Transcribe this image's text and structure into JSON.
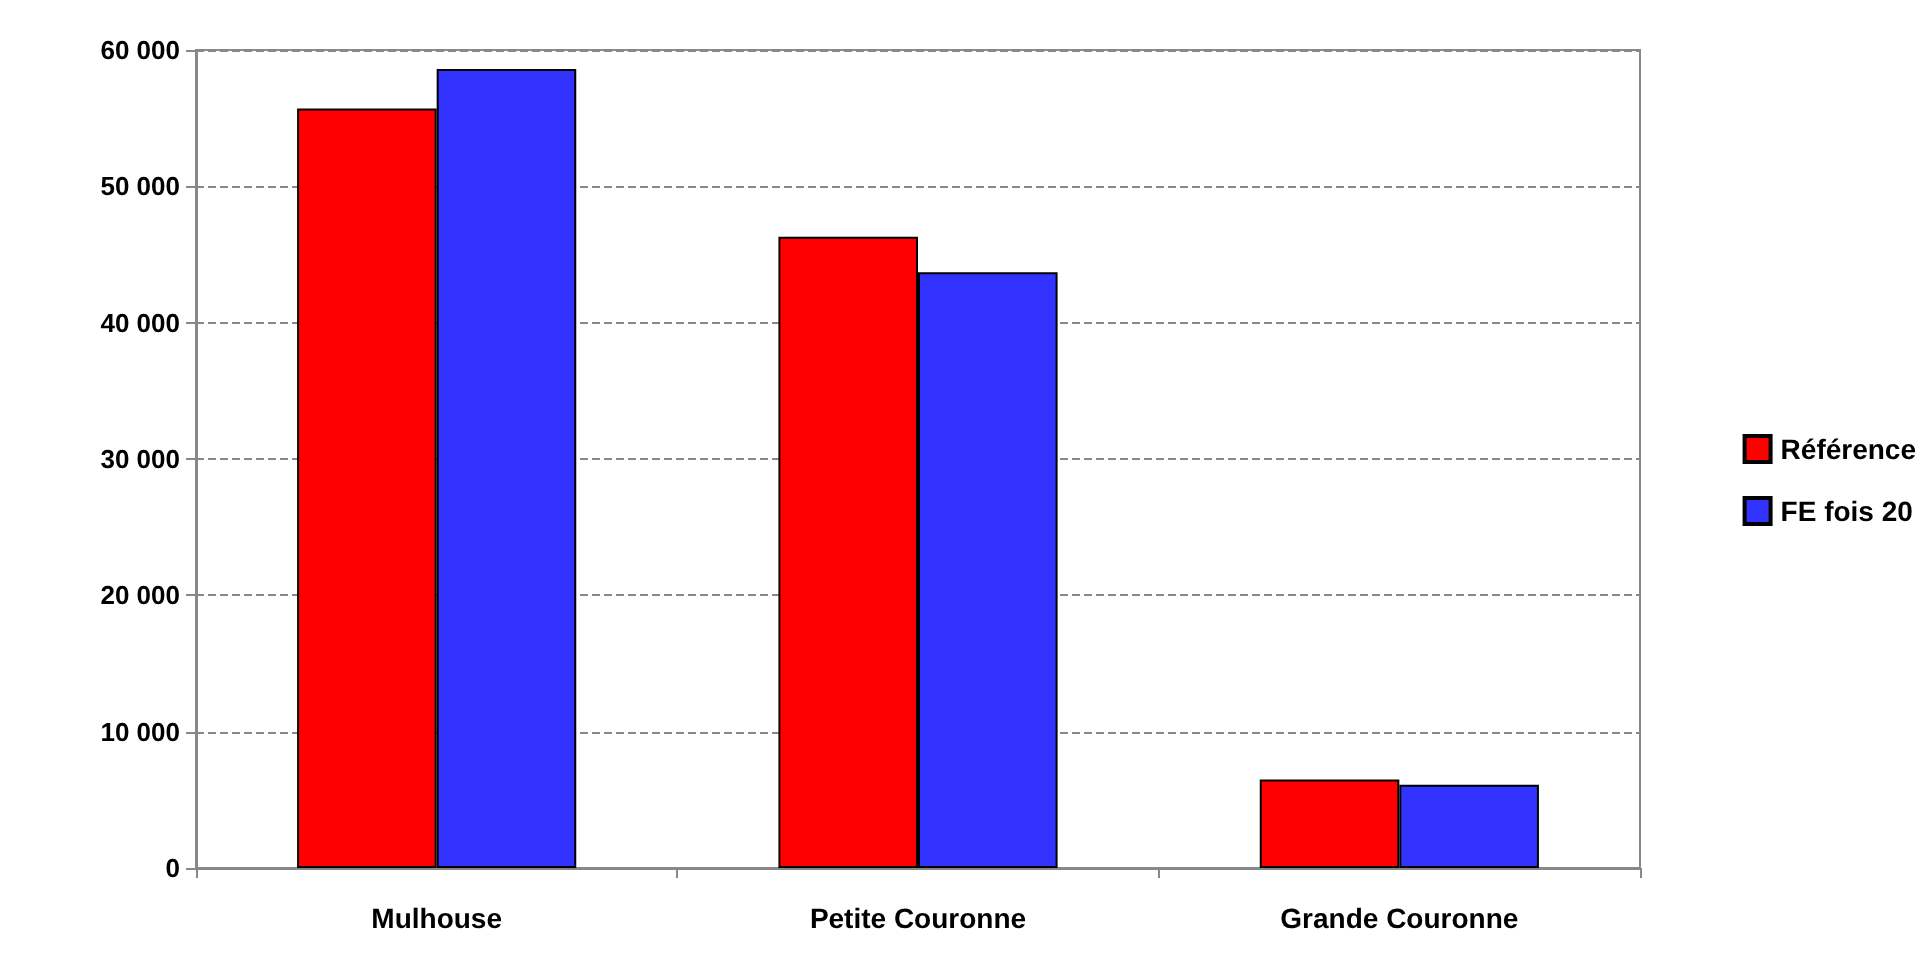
{
  "chart_data": {
    "type": "bar",
    "categories": [
      "Mulhouse",
      "Petite Couronne",
      "Grande Couronne"
    ],
    "series": [
      {
        "name": "Référence",
        "color": "#ff0000",
        "values": [
          55700,
          46300,
          6500
        ]
      },
      {
        "name": "FE fois 20",
        "color": "#3333ff",
        "values": [
          58600,
          43700,
          6100
        ]
      }
    ],
    "ylim": [
      0,
      60000
    ],
    "yticks": [
      {
        "value": 0,
        "label": "0"
      },
      {
        "value": 10000,
        "label": "10 000"
      },
      {
        "value": 20000,
        "label": "20 000"
      },
      {
        "value": 30000,
        "label": "30 000"
      },
      {
        "value": 40000,
        "label": "40 000"
      },
      {
        "value": 50000,
        "label": "50 000"
      },
      {
        "value": 60000,
        "label": "60 000"
      }
    ],
    "grid": "y",
    "legend": "right"
  }
}
